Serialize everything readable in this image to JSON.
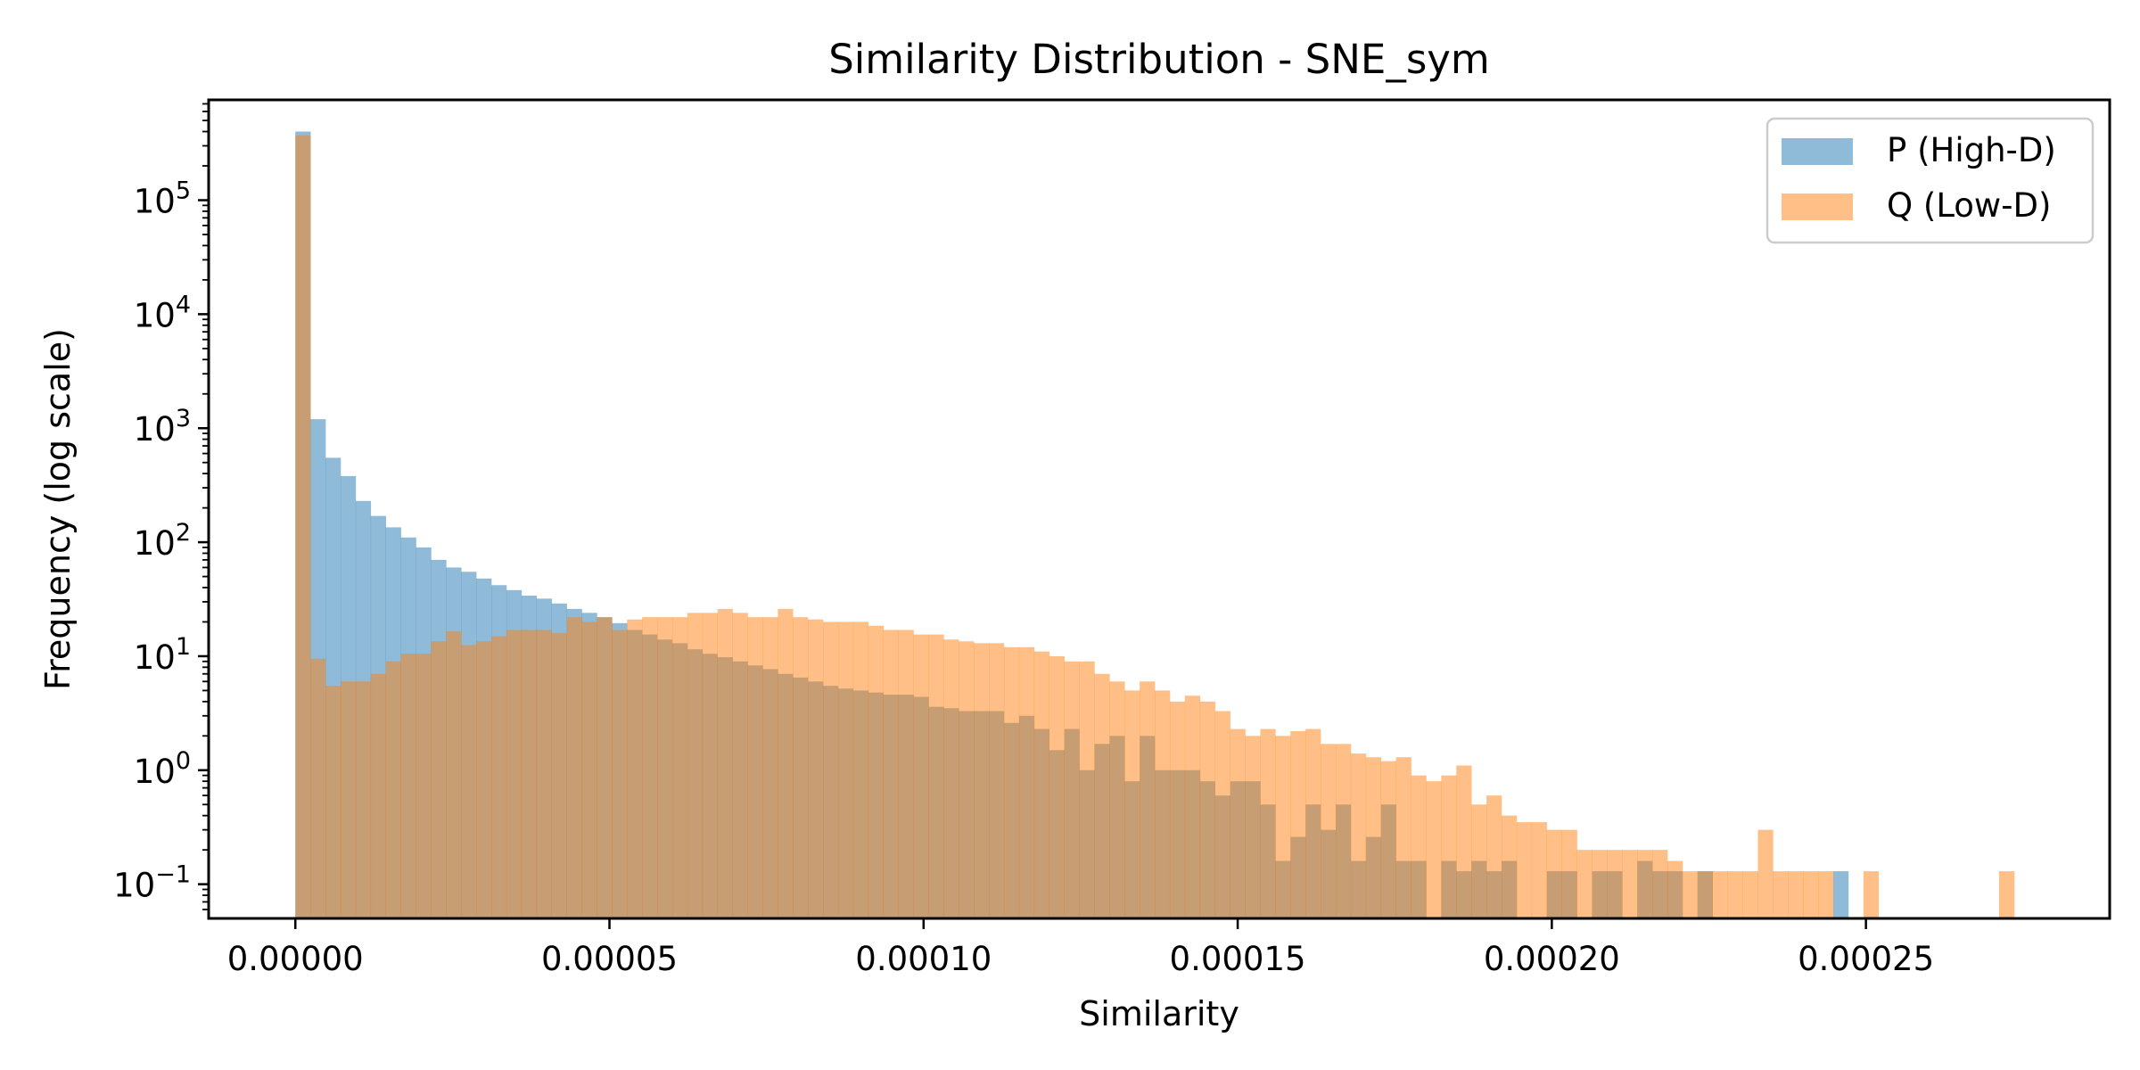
{
  "chart_data": {
    "type": "bar",
    "title": "Similarity Distribution - SNE_sym",
    "xlabel": "Similarity",
    "ylabel": "Frequency (log scale)",
    "y_scale": "log",
    "xlim": [
      -1.38e-05,
      0.0002888
    ],
    "ylim_exp": [
      -1.3,
      5.88
    ],
    "x_ticks": [
      {
        "value": 0.0,
        "label": "0.00000"
      },
      {
        "value": 5e-05,
        "label": "0.00005"
      },
      {
        "value": 0.0001,
        "label": "0.00010"
      },
      {
        "value": 0.00015,
        "label": "0.00015"
      },
      {
        "value": 0.0002,
        "label": "0.00020"
      },
      {
        "value": 0.00025,
        "label": "0.00025"
      }
    ],
    "y_ticks": [
      {
        "exp": -1,
        "base": "10",
        "sup": "−1"
      },
      {
        "exp": 0,
        "base": "10",
        "sup": "0"
      },
      {
        "exp": 1,
        "base": "10",
        "sup": "1"
      },
      {
        "exp": 2,
        "base": "10",
        "sup": "2"
      },
      {
        "exp": 3,
        "base": "10",
        "sup": "3"
      },
      {
        "exp": 4,
        "base": "10",
        "sup": "4"
      },
      {
        "exp": 5,
        "base": "10",
        "sup": "5"
      }
    ],
    "grid": false,
    "legend_position": "top-right",
    "series": [
      {
        "name": "P (High-D)",
        "color": "#1f77b4",
        "opacity": 0.5,
        "bin_width": 2.4e-06,
        "bins": [
          [
            0.0,
            400000
          ],
          [
            2.4e-06,
            1200
          ],
          [
            4.8e-06,
            550
          ],
          [
            7.2e-06,
            380
          ],
          [
            9.6e-06,
            230
          ],
          [
            1.2e-05,
            170
          ],
          [
            1.44e-05,
            135
          ],
          [
            1.68e-05,
            110
          ],
          [
            1.92e-05,
            90
          ],
          [
            2.16e-05,
            70
          ],
          [
            2.4e-05,
            60
          ],
          [
            2.64e-05,
            55
          ],
          [
            2.88e-05,
            48
          ],
          [
            3.12e-05,
            42
          ],
          [
            3.36e-05,
            38
          ],
          [
            3.6e-05,
            34
          ],
          [
            3.84e-05,
            32
          ],
          [
            4.08e-05,
            29
          ],
          [
            4.32e-05,
            26
          ],
          [
            4.56e-05,
            24
          ],
          [
            4.8e-05,
            22
          ],
          [
            5.04e-05,
            19.5
          ],
          [
            5.28e-05,
            17
          ],
          [
            5.52e-05,
            15.5
          ],
          [
            5.76e-05,
            14
          ],
          [
            6e-05,
            13
          ],
          [
            6.24e-05,
            11.5
          ],
          [
            6.48e-05,
            10.5
          ],
          [
            6.72e-05,
            9.8
          ],
          [
            6.96e-05,
            9.0
          ],
          [
            7.2e-05,
            8.3
          ],
          [
            7.44e-05,
            7.7
          ],
          [
            7.68e-05,
            7.0
          ],
          [
            7.92e-05,
            6.5
          ],
          [
            8.16e-05,
            6.0
          ],
          [
            8.4e-05,
            5.5
          ],
          [
            8.64e-05,
            5.2
          ],
          [
            8.88e-05,
            5.0
          ],
          [
            9.12e-05,
            4.8
          ],
          [
            9.36e-05,
            4.6
          ],
          [
            9.6e-05,
            4.6
          ],
          [
            9.84e-05,
            4.4
          ],
          [
            0.0001008,
            3.6
          ],
          [
            0.0001032,
            3.5
          ],
          [
            0.0001056,
            3.3
          ],
          [
            0.000108,
            3.3
          ],
          [
            0.0001104,
            3.3
          ],
          [
            0.0001128,
            2.6
          ],
          [
            0.0001152,
            3.0
          ],
          [
            0.0001176,
            2.3
          ],
          [
            0.00012,
            1.5
          ],
          [
            0.0001224,
            2.3
          ],
          [
            0.0001248,
            1.0
          ],
          [
            0.0001272,
            1.7
          ],
          [
            0.0001296,
            2.0
          ],
          [
            0.000132,
            0.8
          ],
          [
            0.0001344,
            2.0
          ],
          [
            0.0001368,
            1.0
          ],
          [
            0.0001392,
            1.0
          ],
          [
            0.0001416,
            1.0
          ],
          [
            0.000144,
            0.8
          ],
          [
            0.0001464,
            0.6
          ],
          [
            0.0001488,
            0.8
          ],
          [
            0.0001512,
            0.8
          ],
          [
            0.0001536,
            0.5
          ],
          [
            0.000156,
            0.16
          ],
          [
            0.0001584,
            0.26
          ],
          [
            0.0001608,
            0.5
          ],
          [
            0.0001632,
            0.3
          ],
          [
            0.0001656,
            0.5
          ],
          [
            0.000168,
            0.16
          ],
          [
            0.0001704,
            0.26
          ],
          [
            0.0001728,
            0.5
          ],
          [
            0.0001752,
            0.16
          ],
          [
            0.0001776,
            0.16
          ],
          [
            0.0001824,
            0.16
          ],
          [
            0.0001848,
            0.13
          ],
          [
            0.0001872,
            0.16
          ],
          [
            0.0001896,
            0.13
          ],
          [
            0.000192,
            0.16
          ],
          [
            0.0001992,
            0.13
          ],
          [
            0.0002016,
            0.13
          ],
          [
            0.0002064,
            0.13
          ],
          [
            0.0002088,
            0.13
          ],
          [
            0.0002136,
            0.16
          ],
          [
            0.000216,
            0.13
          ],
          [
            0.0002184,
            0.13
          ],
          [
            0.0002232,
            0.13
          ],
          [
            0.0002448,
            0.13
          ]
        ]
      },
      {
        "name": "Q (Low-D)",
        "color": "#ff7f0e",
        "opacity": 0.5,
        "bin_width": 2.4e-06,
        "bins": [
          [
            0.0,
            370000
          ],
          [
            2.4e-06,
            9.5
          ],
          [
            4.8e-06,
            5.5
          ],
          [
            7.2e-06,
            6.0
          ],
          [
            9.6e-06,
            6.0
          ],
          [
            1.2e-05,
            7.0
          ],
          [
            1.44e-05,
            9.0
          ],
          [
            1.68e-05,
            10.5
          ],
          [
            1.92e-05,
            10.5
          ],
          [
            2.16e-05,
            13.5
          ],
          [
            2.4e-05,
            16.5
          ],
          [
            2.64e-05,
            12.5
          ],
          [
            2.88e-05,
            13.5
          ],
          [
            3.12e-05,
            15
          ],
          [
            3.36e-05,
            17
          ],
          [
            3.6e-05,
            17
          ],
          [
            3.84e-05,
            17
          ],
          [
            4.08e-05,
            16
          ],
          [
            4.32e-05,
            22
          ],
          [
            4.56e-05,
            20
          ],
          [
            4.8e-05,
            22
          ],
          [
            5.04e-05,
            17
          ],
          [
            5.28e-05,
            21
          ],
          [
            5.52e-05,
            22
          ],
          [
            5.76e-05,
            22
          ],
          [
            6e-05,
            22
          ],
          [
            6.24e-05,
            24
          ],
          [
            6.48e-05,
            24
          ],
          [
            6.72e-05,
            26
          ],
          [
            6.96e-05,
            24
          ],
          [
            7.2e-05,
            22
          ],
          [
            7.44e-05,
            22
          ],
          [
            7.68e-05,
            26
          ],
          [
            7.92e-05,
            22
          ],
          [
            8.16e-05,
            21
          ],
          [
            8.4e-05,
            20
          ],
          [
            8.64e-05,
            20
          ],
          [
            8.88e-05,
            20
          ],
          [
            9.12e-05,
            18.5
          ],
          [
            9.36e-05,
            17
          ],
          [
            9.6e-05,
            17
          ],
          [
            9.84e-05,
            15.5
          ],
          [
            0.0001008,
            15.5
          ],
          [
            0.0001032,
            14
          ],
          [
            0.0001056,
            13.5
          ],
          [
            0.000108,
            13
          ],
          [
            0.0001104,
            13
          ],
          [
            0.0001128,
            12
          ],
          [
            0.0001152,
            12
          ],
          [
            0.0001176,
            11
          ],
          [
            0.00012,
            10
          ],
          [
            0.0001224,
            9.0
          ],
          [
            0.0001248,
            9.0
          ],
          [
            0.0001272,
            7.0
          ],
          [
            0.0001296,
            6.0
          ],
          [
            0.000132,
            5.0
          ],
          [
            0.0001344,
            6.0
          ],
          [
            0.0001368,
            5.0
          ],
          [
            0.0001392,
            4.0
          ],
          [
            0.0001416,
            4.5
          ],
          [
            0.000144,
            4.0
          ],
          [
            0.0001464,
            3.3
          ],
          [
            0.0001488,
            2.3
          ],
          [
            0.0001512,
            2.0
          ],
          [
            0.0001536,
            2.3
          ],
          [
            0.000156,
            2.0
          ],
          [
            0.0001584,
            2.2
          ],
          [
            0.0001608,
            2.3
          ],
          [
            0.0001632,
            1.7
          ],
          [
            0.0001656,
            1.7
          ],
          [
            0.000168,
            1.4
          ],
          [
            0.0001704,
            1.3
          ],
          [
            0.0001728,
            1.2
          ],
          [
            0.0001752,
            1.3
          ],
          [
            0.0001776,
            0.9
          ],
          [
            0.00018,
            0.8
          ],
          [
            0.0001824,
            0.9
          ],
          [
            0.0001848,
            1.1
          ],
          [
            0.0001872,
            0.5
          ],
          [
            0.0001896,
            0.6
          ],
          [
            0.000192,
            0.4
          ],
          [
            0.0001944,
            0.35
          ],
          [
            0.0001968,
            0.35
          ],
          [
            0.0001992,
            0.3
          ],
          [
            0.0002016,
            0.3
          ],
          [
            0.000204,
            0.2
          ],
          [
            0.0002064,
            0.2
          ],
          [
            0.0002088,
            0.2
          ],
          [
            0.0002112,
            0.2
          ],
          [
            0.0002136,
            0.2
          ],
          [
            0.000216,
            0.2
          ],
          [
            0.0002184,
            0.16
          ],
          [
            0.0002208,
            0.13
          ],
          [
            0.0002232,
            0.13
          ],
          [
            0.0002256,
            0.13
          ],
          [
            0.000228,
            0.13
          ],
          [
            0.0002304,
            0.13
          ],
          [
            0.0002328,
            0.3
          ],
          [
            0.0002352,
            0.13
          ],
          [
            0.0002376,
            0.13
          ],
          [
            0.00024,
            0.13
          ],
          [
            0.0002424,
            0.13
          ],
          [
            0.0002496,
            0.13
          ],
          [
            0.0002712,
            0.13
          ]
        ]
      }
    ]
  }
}
